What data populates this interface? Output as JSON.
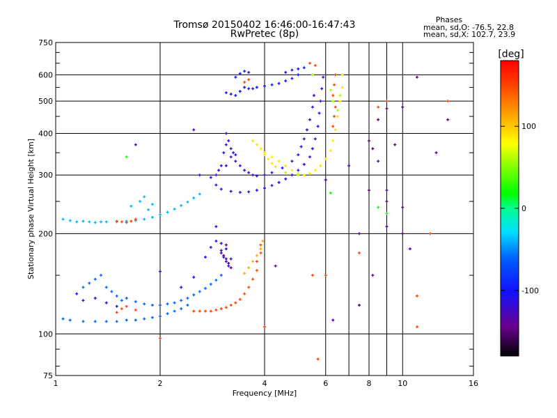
{
  "chart_data": {
    "type": "scatter",
    "title": "Tromsø 20150402 16:46:00-16:47:43",
    "subtitle": "RwPretec (8p)",
    "xlabel": "Frequency [MHz]",
    "ylabel": "Stationary phase Virtual Height [km]",
    "x_scale": "log",
    "y_scale": "log",
    "xlim": [
      1,
      16
    ],
    "ylim": [
      75,
      750
    ],
    "x_ticks": [
      1,
      2,
      4,
      6,
      8,
      10,
      16
    ],
    "y_ticks": [
      75,
      100,
      200,
      300,
      400,
      500,
      600,
      750
    ],
    "grid": true,
    "phase_stats": {
      "title": "Phases",
      "line_o": "mean, sd,O: -76.5, 22.8",
      "line_x": "mean, sd,X: 102.7, 23.9"
    },
    "colorbar": {
      "label": "[deg]",
      "ticks": [
        100,
        0,
        -100
      ],
      "range": [
        -180,
        180
      ]
    },
    "series": [
      {
        "name": "",
        "phase": -40,
        "points": [
          [
            1.05,
            221
          ],
          [
            1.1,
            219
          ],
          [
            1.15,
            217
          ],
          [
            1.2,
            218
          ],
          [
            1.25,
            217
          ],
          [
            1.3,
            216
          ],
          [
            1.35,
            217
          ],
          [
            1.4,
            217
          ],
          [
            1.5,
            217
          ],
          [
            1.6,
            218
          ],
          [
            1.7,
            219
          ],
          [
            1.8,
            221
          ],
          [
            1.9,
            224
          ],
          [
            2.0,
            228
          ],
          [
            2.1,
            232
          ],
          [
            2.2,
            237
          ],
          [
            2.3,
            243
          ],
          [
            2.4,
            249
          ],
          [
            2.5,
            256
          ],
          [
            2.6,
            263
          ],
          [
            1.65,
            242
          ],
          [
            1.75,
            250
          ],
          [
            1.8,
            258
          ],
          [
            1.85,
            236
          ],
          [
            1.9,
            245
          ]
        ]
      },
      {
        "name": "",
        "phase": 150,
        "points": [
          [
            1.5,
            218
          ],
          [
            1.55,
            217
          ],
          [
            1.6,
            216
          ],
          [
            1.65,
            218
          ],
          [
            1.7,
            221
          ]
        ]
      },
      {
        "name": "",
        "phase": -60,
        "points": [
          [
            1.05,
            111
          ],
          [
            1.1,
            110
          ],
          [
            1.2,
            109
          ],
          [
            1.3,
            109
          ],
          [
            1.4,
            109
          ],
          [
            1.5,
            109
          ],
          [
            1.6,
            110
          ],
          [
            1.7,
            110
          ],
          [
            1.8,
            111
          ],
          [
            1.9,
            112
          ],
          [
            2.0,
            113
          ],
          [
            2.1,
            115
          ],
          [
            2.2,
            117
          ],
          [
            2.3,
            119
          ],
          [
            2.4,
            122
          ],
          [
            1.2,
            138
          ],
          [
            1.25,
            142
          ],
          [
            1.3,
            146
          ],
          [
            1.35,
            150
          ],
          [
            1.4,
            138
          ],
          [
            1.45,
            134
          ],
          [
            1.5,
            130
          ],
          [
            1.55,
            126
          ],
          [
            1.6,
            128
          ],
          [
            1.7,
            125
          ],
          [
            1.8,
            123
          ],
          [
            1.9,
            122
          ],
          [
            2.0,
            122
          ],
          [
            2.1,
            123
          ],
          [
            2.2,
            124
          ],
          [
            2.3,
            126
          ],
          [
            2.4,
            128
          ],
          [
            2.5,
            131
          ],
          [
            2.6,
            134
          ],
          [
            2.7,
            137
          ],
          [
            2.8,
            141
          ],
          [
            2.9,
            145
          ],
          [
            3.0,
            150
          ]
        ]
      },
      {
        "name": "",
        "phase": -110,
        "points": [
          [
            1.15,
            132
          ],
          [
            1.2,
            126
          ],
          [
            1.3,
            128
          ],
          [
            1.4,
            124
          ],
          [
            1.5,
            121
          ],
          [
            2.0,
            154
          ],
          [
            2.3,
            138
          ],
          [
            2.5,
            148
          ],
          [
            2.7,
            170
          ],
          [
            2.8,
            182
          ],
          [
            2.9,
            190
          ],
          [
            2.9,
            210
          ],
          [
            3.0,
            175
          ],
          [
            3.05,
            170
          ],
          [
            3.1,
            165
          ],
          [
            3.15,
            160
          ],
          [
            3.2,
            168
          ],
          [
            3.0,
            187
          ],
          [
            3.1,
            180
          ]
        ]
      },
      {
        "name": "",
        "phase": -150,
        "points": [
          [
            3.0,
            178
          ],
          [
            3.05,
            172
          ],
          [
            3.1,
            168
          ],
          [
            3.15,
            163
          ],
          [
            3.2,
            158
          ],
          [
            3.1,
            185
          ]
        ]
      },
      {
        "name": "",
        "phase": 150,
        "points": [
          [
            1.5,
            116
          ],
          [
            1.55,
            119
          ],
          [
            1.6,
            121
          ],
          [
            1.7,
            118
          ],
          [
            2.5,
            117
          ],
          [
            2.6,
            117
          ],
          [
            2.7,
            117
          ],
          [
            2.8,
            117
          ],
          [
            2.9,
            118
          ],
          [
            3.0,
            119
          ],
          [
            3.1,
            120
          ],
          [
            3.2,
            122
          ],
          [
            3.3,
            124
          ],
          [
            3.4,
            127
          ],
          [
            3.5,
            132
          ],
          [
            3.6,
            138
          ],
          [
            3.7,
            146
          ],
          [
            3.8,
            155
          ],
          [
            3.8,
            165
          ],
          [
            3.9,
            175
          ],
          [
            3.9,
            185
          ]
        ]
      },
      {
        "name": "",
        "phase": 110,
        "points": [
          [
            3.5,
            152
          ],
          [
            3.6,
            158
          ],
          [
            3.7,
            165
          ],
          [
            3.8,
            172
          ],
          [
            3.9,
            180
          ],
          [
            3.95,
            190
          ]
        ]
      },
      {
        "name": "",
        "phase": -110,
        "points": [
          [
            2.6,
            300
          ],
          [
            2.8,
            295
          ],
          [
            2.9,
            280
          ],
          [
            3.0,
            272
          ],
          [
            3.2,
            268
          ],
          [
            3.4,
            266
          ],
          [
            3.6,
            267
          ],
          [
            3.8,
            270
          ],
          [
            4.0,
            274
          ],
          [
            4.2,
            279
          ],
          [
            4.4,
            285
          ],
          [
            4.6,
            292
          ],
          [
            4.8,
            300
          ],
          [
            5.0,
            310
          ],
          [
            5.2,
            323
          ],
          [
            5.4,
            340
          ],
          [
            5.5,
            360
          ],
          [
            5.6,
            385
          ],
          [
            5.7,
            420
          ],
          [
            5.75,
            460
          ],
          [
            5.8,
            500
          ],
          [
            5.85,
            545
          ],
          [
            5.9,
            590
          ],
          [
            3.1,
            320
          ],
          [
            3.2,
            340
          ],
          [
            3.3,
            330
          ],
          [
            3.4,
            320
          ],
          [
            3.5,
            310
          ],
          [
            3.6,
            305
          ],
          [
            3.7,
            300
          ],
          [
            3.8,
            298
          ],
          [
            4.0,
            300
          ],
          [
            4.2,
            305
          ],
          [
            4.5,
            315
          ],
          [
            4.8,
            330
          ],
          [
            5.0,
            345
          ],
          [
            5.1,
            365
          ],
          [
            5.2,
            385
          ],
          [
            5.3,
            410
          ],
          [
            5.4,
            440
          ],
          [
            5.5,
            480
          ],
          [
            5.55,
            520
          ],
          [
            3.1,
            400
          ],
          [
            3.15,
            380
          ],
          [
            3.2,
            360
          ],
          [
            3.25,
            350
          ],
          [
            3.3,
            345
          ],
          [
            2.9,
            300
          ],
          [
            2.95,
            310
          ],
          [
            3.0,
            320
          ],
          [
            3.05,
            350
          ],
          [
            3.1,
            370
          ]
        ]
      },
      {
        "name": "",
        "phase": -100,
        "points": [
          [
            3.1,
            530
          ],
          [
            3.2,
            525
          ],
          [
            3.3,
            520
          ],
          [
            3.4,
            535
          ],
          [
            3.5,
            550
          ],
          [
            3.6,
            545
          ],
          [
            3.7,
            545
          ],
          [
            3.8,
            550
          ],
          [
            4.0,
            555
          ],
          [
            4.2,
            560
          ],
          [
            4.4,
            565
          ],
          [
            4.6,
            575
          ],
          [
            4.8,
            585
          ],
          [
            5.0,
            600
          ],
          [
            3.3,
            590
          ],
          [
            3.4,
            605
          ],
          [
            3.5,
            615
          ],
          [
            3.6,
            610
          ],
          [
            4.6,
            610
          ],
          [
            4.8,
            620
          ],
          [
            5.0,
            625
          ],
          [
            5.2,
            630
          ]
        ]
      },
      {
        "name": "",
        "phase": 90,
        "points": [
          [
            4.0,
            350
          ],
          [
            4.2,
            340
          ],
          [
            4.4,
            330
          ],
          [
            4.6,
            320
          ],
          [
            4.8,
            310
          ],
          [
            5.0,
            303
          ],
          [
            5.2,
            300
          ],
          [
            5.4,
            303
          ],
          [
            5.6,
            310
          ],
          [
            5.8,
            320
          ],
          [
            6.0,
            335
          ],
          [
            6.2,
            355
          ],
          [
            6.3,
            380
          ],
          [
            6.4,
            410
          ],
          [
            6.5,
            450
          ],
          [
            6.6,
            500
          ],
          [
            6.7,
            550
          ],
          [
            6.7,
            600
          ],
          [
            3.7,
            380
          ],
          [
            3.8,
            370
          ],
          [
            3.9,
            360
          ],
          [
            4.0,
            345
          ],
          [
            4.1,
            335
          ],
          [
            4.2,
            325
          ],
          [
            4.3,
            318
          ]
        ]
      },
      {
        "name": "",
        "phase": 150,
        "points": [
          [
            6.3,
            420
          ],
          [
            6.35,
            450
          ],
          [
            6.4,
            480
          ],
          [
            6.3,
            520
          ],
          [
            6.35,
            560
          ],
          [
            6.4,
            600
          ],
          [
            3.5,
            570
          ],
          [
            3.6,
            580
          ],
          [
            5.4,
            650
          ],
          [
            5.6,
            640
          ]
        ]
      },
      {
        "name": "",
        "phase": 60,
        "points": [
          [
            6.5,
            470
          ],
          [
            6.6,
            520
          ],
          [
            6.2,
            540
          ],
          [
            6.3,
            500
          ],
          [
            5.5,
            600
          ],
          [
            5.0,
            300
          ],
          [
            4.6,
            305
          ]
        ]
      },
      {
        "name": "",
        "phase": -150,
        "points": [
          [
            8.0,
            380
          ],
          [
            8.2,
            360
          ],
          [
            8.5,
            440
          ],
          [
            9.0,
            475
          ],
          [
            9.5,
            370
          ],
          [
            10.0,
            480
          ],
          [
            10.0,
            200
          ],
          [
            11.0,
            590
          ],
          [
            13.5,
            440
          ],
          [
            8.0,
            270
          ],
          [
            9.0,
            250
          ],
          [
            10.0,
            240
          ]
        ]
      },
      {
        "name": "",
        "phase": 150,
        "points": [
          [
            8.5,
            480
          ],
          [
            9.0,
            500
          ],
          [
            12.0,
            200
          ],
          [
            11.0,
            130
          ],
          [
            11.0,
            105
          ],
          [
            13.5,
            500
          ],
          [
            4.0,
            105
          ],
          [
            5.5,
            150
          ],
          [
            7.5,
            175
          ],
          [
            6.0,
            150
          ],
          [
            2.0,
            97
          ],
          [
            5.7,
            84
          ]
        ]
      },
      {
        "name": "",
        "phase": -130,
        "points": [
          [
            6.3,
            110
          ],
          [
            7.5,
            122
          ],
          [
            8.2,
            150
          ],
          [
            9.0,
            270
          ],
          [
            7.5,
            200
          ],
          [
            1.7,
            370
          ],
          [
            2.5,
            410
          ],
          [
            4.3,
            160
          ],
          [
            7.0,
            320
          ],
          [
            8.5,
            330
          ],
          [
            6.0,
            290
          ],
          [
            9.0,
            210
          ],
          [
            12.5,
            350
          ],
          [
            10.5,
            180
          ]
        ]
      },
      {
        "name": "",
        "phase": 20,
        "points": [
          [
            8.5,
            240
          ],
          [
            9.0,
            230
          ],
          [
            6.2,
            265
          ],
          [
            1.6,
            340
          ]
        ]
      }
    ]
  }
}
